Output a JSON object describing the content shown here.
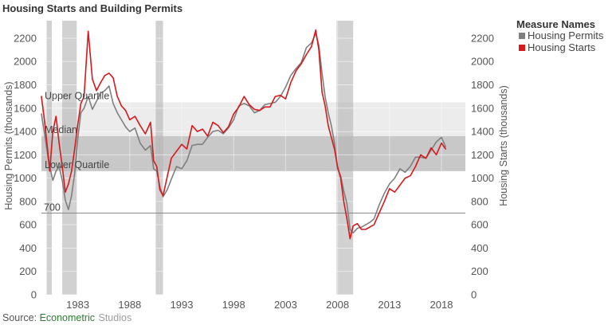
{
  "chart_data": {
    "type": "line",
    "title": "Housing Starts and Building Permits",
    "ylabel_left": "Housing Permits (thousands)",
    "ylabel_right": "Housing Starts (thousands)",
    "xlim": [
      1979.5,
      2020.3
    ],
    "ylim": [
      0,
      2350
    ],
    "x_ticks": [
      1983,
      1988,
      1993,
      1998,
      2003,
      2008,
      2013,
      2018
    ],
    "y_ticks": [
      0,
      200,
      400,
      600,
      800,
      1000,
      1200,
      1400,
      1600,
      1800,
      2000,
      2200
    ],
    "recessions": [
      [
        1980.0,
        1980.5
      ],
      [
        1981.5,
        1982.9
      ],
      [
        1990.5,
        1991.2
      ],
      [
        2007.9,
        2009.5
      ]
    ],
    "bands": {
      "upper_quartile": {
        "label": "Upper Quartile",
        "range": [
          1360,
          1650
        ],
        "color": "#ececec"
      },
      "lower_quartile": {
        "label": "Lower Quartile",
        "range": [
          1060,
          1360
        ],
        "color": "#c8c8c8"
      },
      "median": {
        "label": "Median",
        "value": 1360
      }
    },
    "reference_line": {
      "label": "700",
      "value": 700
    },
    "legend": {
      "title": "Measure Names",
      "position": "right"
    },
    "grid": true,
    "series": [
      {
        "name": "Housing Permits",
        "color": "#7f7f7f",
        "x": [
          1979.5,
          1979.8,
          1980.1,
          1980.3,
          1980.6,
          1980.9,
          1981.2,
          1981.5,
          1981.8,
          1982.1,
          1982.4,
          1982.7,
          1983.0,
          1983.3,
          1983.6,
          1984.0,
          1984.4,
          1984.8,
          1985.2,
          1985.6,
          1986.0,
          1986.4,
          1986.8,
          1987.2,
          1987.6,
          1988.0,
          1988.5,
          1989.0,
          1989.5,
          1990.0,
          1990.3,
          1990.6,
          1990.9,
          1991.2,
          1991.6,
          1992.0,
          1992.5,
          1993.0,
          1993.5,
          1994.0,
          1994.5,
          1995.0,
          1995.5,
          1996.0,
          1996.5,
          1997.0,
          1997.5,
          1998.0,
          1998.5,
          1999.0,
          1999.5,
          2000.0,
          2000.5,
          2001.0,
          2001.5,
          2002.0,
          2002.5,
          2003.0,
          2003.5,
          2004.0,
          2004.5,
          2005.0,
          2005.5,
          2005.9,
          2006.2,
          2006.5,
          2006.8,
          2007.1,
          2007.4,
          2007.7,
          2008.0,
          2008.3,
          2008.6,
          2008.9,
          2009.2,
          2009.5,
          2009.9,
          2010.3,
          2010.7,
          2011.1,
          2011.5,
          2012.0,
          2012.5,
          2013.0,
          2013.5,
          2014.0,
          2014.5,
          2015.0,
          2015.5,
          2016.0,
          2016.5,
          2017.0,
          2017.5,
          2018.0,
          2018.4
        ],
        "values": [
          1550,
          1380,
          1200,
          1100,
          980,
          1060,
          1100,
          980,
          810,
          730,
          850,
          1040,
          1340,
          1560,
          1600,
          1700,
          1590,
          1660,
          1730,
          1750,
          1790,
          1640,
          1560,
          1500,
          1440,
          1400,
          1430,
          1300,
          1240,
          1280,
          1080,
          1060,
          930,
          840,
          900,
          990,
          1100,
          1080,
          1150,
          1280,
          1290,
          1290,
          1350,
          1400,
          1410,
          1380,
          1430,
          1500,
          1620,
          1640,
          1620,
          1560,
          1580,
          1630,
          1640,
          1650,
          1700,
          1780,
          1880,
          1940,
          1990,
          2120,
          2160,
          2240,
          2140,
          1900,
          1700,
          1560,
          1450,
          1300,
          1080,
          1020,
          890,
          780,
          560,
          530,
          570,
          580,
          600,
          620,
          650,
          770,
          870,
          950,
          1000,
          1080,
          1050,
          1100,
          1180,
          1180,
          1170,
          1240,
          1310,
          1350,
          1270
        ]
      },
      {
        "name": "Housing Starts",
        "color": "#d7191c",
        "x": [
          1979.5,
          1979.8,
          1980.1,
          1980.3,
          1980.6,
          1980.9,
          1981.2,
          1981.5,
          1981.8,
          1982.1,
          1982.4,
          1982.7,
          1983.0,
          1983.3,
          1983.6,
          1984.0,
          1984.4,
          1984.8,
          1985.2,
          1985.6,
          1986.0,
          1986.4,
          1986.8,
          1987.2,
          1987.6,
          1988.0,
          1988.5,
          1989.0,
          1989.5,
          1990.0,
          1990.3,
          1990.6,
          1990.9,
          1991.2,
          1991.6,
          1992.0,
          1992.5,
          1993.0,
          1993.5,
          1994.0,
          1994.5,
          1995.0,
          1995.5,
          1996.0,
          1996.5,
          1997.0,
          1997.5,
          1998.0,
          1998.5,
          1999.0,
          1999.5,
          2000.0,
          2000.5,
          2001.0,
          2001.5,
          2002.0,
          2002.5,
          2003.0,
          2003.5,
          2004.0,
          2004.5,
          2005.0,
          2005.5,
          2005.9,
          2006.2,
          2006.5,
          2006.8,
          2007.1,
          2007.4,
          2007.7,
          2008.0,
          2008.3,
          2008.6,
          2008.9,
          2009.2,
          2009.5,
          2009.9,
          2010.3,
          2010.7,
          2011.1,
          2011.5,
          2012.0,
          2012.5,
          2013.0,
          2013.5,
          2014.0,
          2014.5,
          2015.0,
          2015.5,
          2016.0,
          2016.5,
          2017.0,
          2017.5,
          2018.0,
          2018.4
        ],
        "values": [
          1700,
          1490,
          1240,
          1060,
          1400,
          1530,
          1300,
          1100,
          880,
          950,
          1060,
          1250,
          1460,
          1640,
          1700,
          2260,
          1850,
          1750,
          1820,
          1880,
          1900,
          1860,
          1700,
          1620,
          1580,
          1500,
          1530,
          1450,
          1380,
          1480,
          1150,
          1100,
          900,
          850,
          1010,
          1170,
          1230,
          1290,
          1250,
          1450,
          1400,
          1420,
          1360,
          1480,
          1450,
          1390,
          1440,
          1550,
          1610,
          1700,
          1630,
          1590,
          1580,
          1610,
          1610,
          1700,
          1710,
          1680,
          1820,
          1920,
          1980,
          2060,
          2130,
          2270,
          2100,
          1740,
          1620,
          1450,
          1350,
          1250,
          1100,
          1000,
          800,
          650,
          480,
          590,
          610,
          560,
          560,
          580,
          600,
          700,
          800,
          910,
          880,
          940,
          1000,
          1020,
          1100,
          1200,
          1170,
          1260,
          1200,
          1300,
          1250
        ]
      }
    ]
  },
  "source": {
    "prefix": "Source: ",
    "brand": "Econometric",
    "suffix": " Studios"
  }
}
